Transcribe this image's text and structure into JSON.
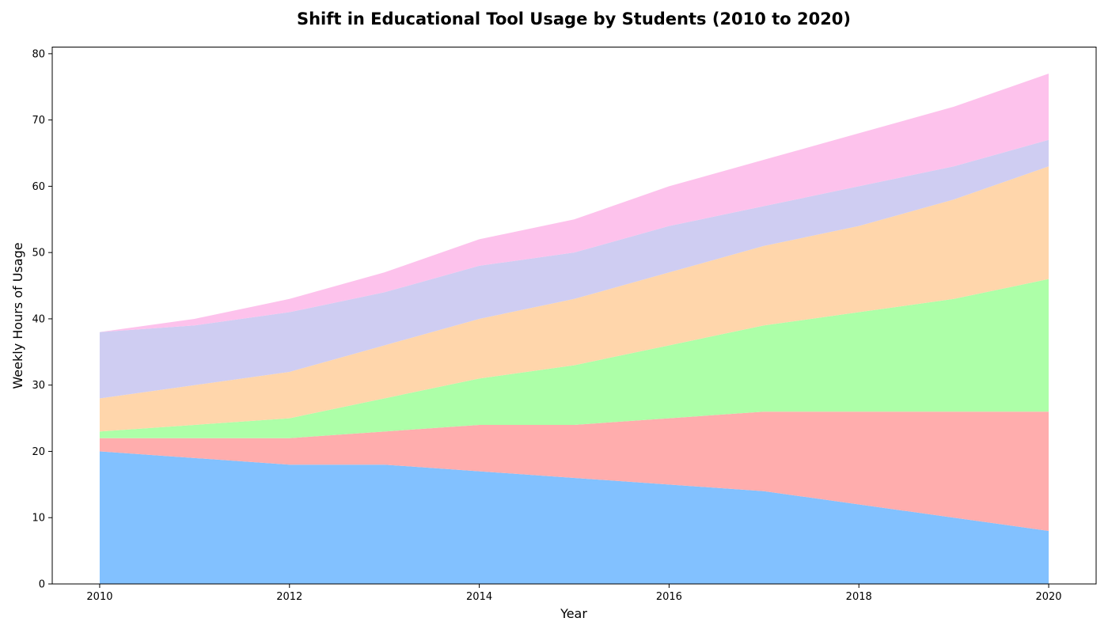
{
  "chart_data": {
    "type": "area",
    "stacked": true,
    "title": "Shift in Educational Tool Usage by Students (2010 to 2020)",
    "xlabel": "Year",
    "ylabel": "Weekly Hours of Usage",
    "x": [
      2010,
      2011,
      2012,
      2013,
      2014,
      2015,
      2016,
      2017,
      2018,
      2019,
      2020
    ],
    "xlim": [
      2009.5,
      2020.5
    ],
    "ylim": [
      0,
      81
    ],
    "x_ticks": [
      2010,
      2012,
      2014,
      2016,
      2018,
      2020
    ],
    "y_ticks": [
      0,
      10,
      20,
      30,
      40,
      50,
      60,
      70,
      80
    ],
    "grid": false,
    "legend": "none",
    "series": [
      {
        "color": "#82c1ff",
        "values": [
          20,
          19,
          18,
          18,
          17,
          16,
          15,
          14,
          12,
          10,
          8
        ]
      },
      {
        "color": "#ffadad",
        "values": [
          2,
          3,
          4,
          5,
          7,
          8,
          10,
          12,
          14,
          16,
          18
        ]
      },
      {
        "color": "#adffa8",
        "values": [
          1,
          2,
          3,
          5,
          7,
          9,
          11,
          13,
          15,
          17,
          20
        ]
      },
      {
        "color": "#ffd6ab",
        "values": [
          5,
          6,
          7,
          8,
          9,
          10,
          11,
          12,
          13,
          15,
          17
        ]
      },
      {
        "color": "#cfcdf2",
        "values": [
          10,
          9,
          9,
          8,
          8,
          7,
          7,
          6,
          6,
          5,
          4
        ]
      },
      {
        "color": "#fdc2ec",
        "values": [
          0,
          1,
          2,
          3,
          4,
          5,
          6,
          7,
          8,
          9,
          10
        ]
      }
    ]
  }
}
